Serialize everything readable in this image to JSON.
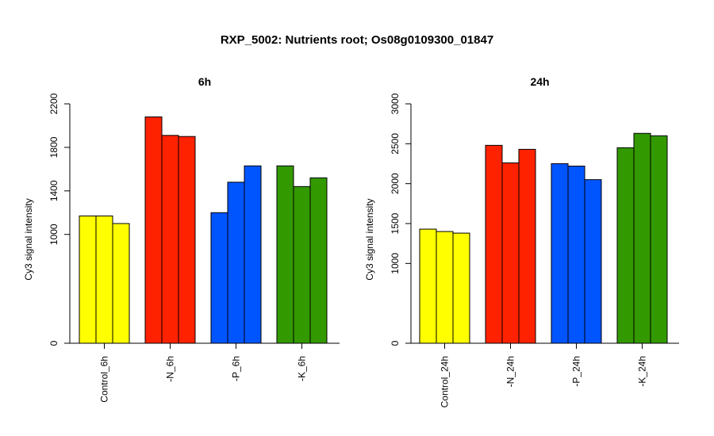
{
  "title": "RXP_5002: Nutrients root; Os08g0109300_01847",
  "chart_data": [
    {
      "type": "bar",
      "title": "6h",
      "ylabel": "Cy3 signal intensity",
      "ylim": [
        0,
        2200
      ],
      "yticks": [
        0,
        1000,
        1400,
        1800,
        2200
      ],
      "groups": [
        {
          "label": "Control_6h",
          "color": "#ffff00",
          "values": [
            1170,
            1170,
            1100
          ]
        },
        {
          "label": "-N_6h",
          "color": "#ff2200",
          "values": [
            2080,
            1910,
            1900
          ]
        },
        {
          "label": "-P_6h",
          "color": "#0055ff",
          "values": [
            1200,
            1480,
            1630
          ]
        },
        {
          "label": "-K_6h",
          "color": "#339900",
          "values": [
            1630,
            1440,
            1520
          ]
        }
      ]
    },
    {
      "type": "bar",
      "title": "24h",
      "ylabel": "Cy3 signal intensity",
      "ylim": [
        0,
        3000
      ],
      "yticks": [
        0,
        1000,
        1500,
        2000,
        2500,
        3000
      ],
      "groups": [
        {
          "label": "Control_24h",
          "color": "#ffff00",
          "values": [
            1430,
            1400,
            1380
          ]
        },
        {
          "label": "-N_24h",
          "color": "#ff2200",
          "values": [
            2480,
            2260,
            2430
          ]
        },
        {
          "label": "-P_24h",
          "color": "#0055ff",
          "values": [
            2250,
            2220,
            2050
          ]
        },
        {
          "label": "-K_24h",
          "color": "#339900",
          "values": [
            2450,
            2630,
            2600
          ]
        }
      ]
    }
  ]
}
